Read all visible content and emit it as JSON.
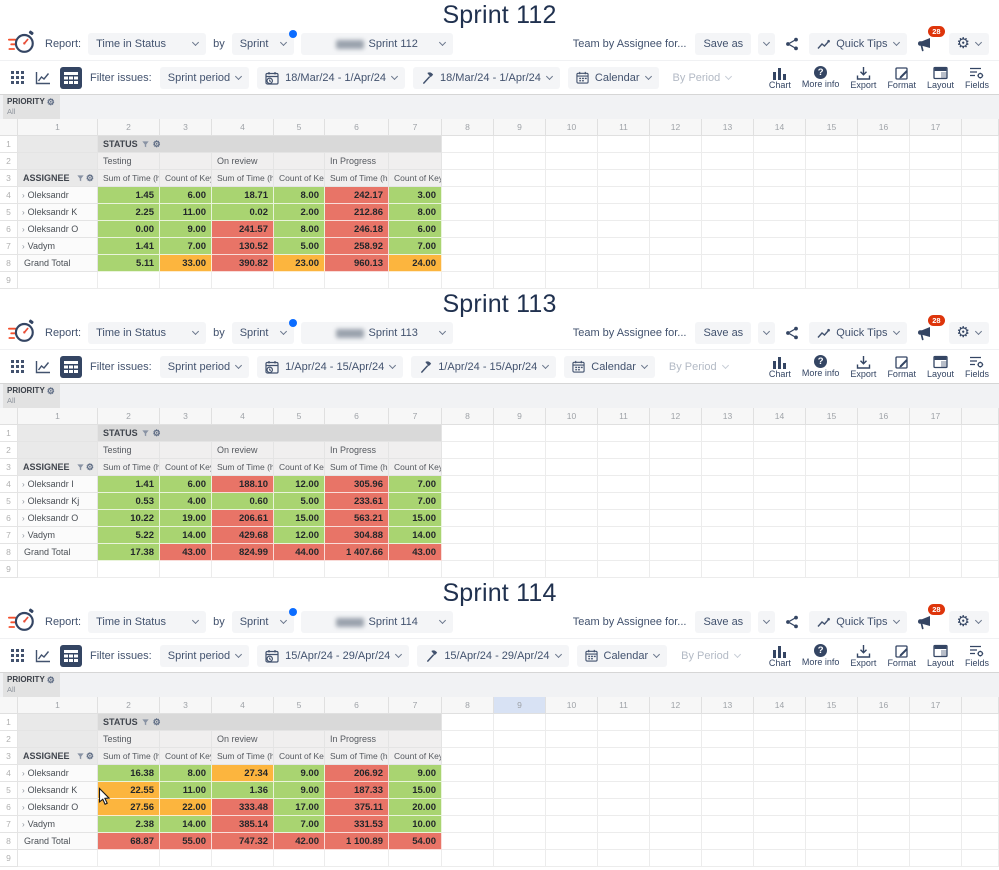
{
  "shared": {
    "report_label": "Report:",
    "report_value": "Time in Status",
    "by_label": "by",
    "group_by_value": "Sprint",
    "team_text": "Team by Assignee for...",
    "save_as_label": "Save as",
    "quick_tips_label": "Quick Tips",
    "notification_count": "28",
    "filter_issues_label": "Filter issues:",
    "sprint_period_value": "Sprint period",
    "calendar_value": "Calendar",
    "by_period_label": "By Period",
    "tools": [
      {
        "label": "Chart"
      },
      {
        "label": "More info"
      },
      {
        "label": "Export"
      },
      {
        "label": "Format"
      },
      {
        "label": "Layout"
      },
      {
        "label": "Fields"
      }
    ],
    "priority": {
      "label": "PRIORITY",
      "value": "All"
    },
    "status_label": "STATUS",
    "assignee_label": "ASSIGNEE",
    "status_groups": [
      "Testing",
      "On review",
      "In Progress"
    ],
    "measure_headers": [
      "Sum of Time (hours)",
      "Count of Key"
    ],
    "grand_total_label": "Grand Total",
    "column_numbers": [
      "1",
      "2",
      "3",
      "4",
      "5",
      "6",
      "7",
      "8",
      "9",
      "10",
      "11",
      "12",
      "13",
      "14",
      "15",
      "16",
      "17"
    ],
    "row_numbers": [
      "1",
      "2",
      "3",
      "4",
      "5",
      "6",
      "7",
      "8",
      "9"
    ],
    "colors": {
      "green": "#a9d471",
      "orange": "#fcb53e",
      "red": "#e87467",
      "accent_blue": "#0b6cff",
      "badge_red": "#de350b",
      "icon_navy": "#344563"
    }
  },
  "sections": [
    {
      "title": "Sprint 112",
      "sprint_value": "Sprint 112",
      "date_range_1": "18/Mar/24 - 1/Apr/24",
      "date_range_2": "18/Mar/24 - 1/Apr/24",
      "highlight_col": null,
      "cursor": false,
      "rows": [
        {
          "name": "Oleksandr",
          "cells": [
            [
              "1.45",
              "g"
            ],
            [
              "6.00",
              "g"
            ],
            [
              "18.71",
              "g"
            ],
            [
              "8.00",
              "g"
            ],
            [
              "242.17",
              "r"
            ],
            [
              "3.00",
              "g"
            ]
          ]
        },
        {
          "name": "Oleksandr K",
          "cells": [
            [
              "2.25",
              "g"
            ],
            [
              "11.00",
              "g"
            ],
            [
              "0.02",
              "g"
            ],
            [
              "2.00",
              "g"
            ],
            [
              "212.86",
              "r"
            ],
            [
              "8.00",
              "g"
            ]
          ]
        },
        {
          "name": "Oleksandr O",
          "cells": [
            [
              "0.00",
              "g"
            ],
            [
              "9.00",
              "g"
            ],
            [
              "241.57",
              "r"
            ],
            [
              "8.00",
              "g"
            ],
            [
              "246.18",
              "r"
            ],
            [
              "6.00",
              "g"
            ]
          ]
        },
        {
          "name": "Vadym",
          "cells": [
            [
              "1.41",
              "g"
            ],
            [
              "7.00",
              "g"
            ],
            [
              "130.52",
              "r"
            ],
            [
              "5.00",
              "g"
            ],
            [
              "258.92",
              "r"
            ],
            [
              "7.00",
              "g"
            ]
          ]
        }
      ],
      "grand_total": [
        [
          "5.11",
          "g"
        ],
        [
          "33.00",
          "o"
        ],
        [
          "390.82",
          "r"
        ],
        [
          "23.00",
          "o"
        ],
        [
          "960.13",
          "r"
        ],
        [
          "24.00",
          "o"
        ]
      ]
    },
    {
      "title": "Sprint 113",
      "sprint_value": "Sprint 113",
      "date_range_1": "1/Apr/24 - 15/Apr/24",
      "date_range_2": "1/Apr/24 - 15/Apr/24",
      "highlight_col": null,
      "cursor": false,
      "rows": [
        {
          "name": "Oleksandr I",
          "cells": [
            [
              "1.41",
              "g"
            ],
            [
              "6.00",
              "g"
            ],
            [
              "188.10",
              "r"
            ],
            [
              "12.00",
              "g"
            ],
            [
              "305.96",
              "r"
            ],
            [
              "7.00",
              "g"
            ]
          ]
        },
        {
          "name": "Oleksandr Kj",
          "cells": [
            [
              "0.53",
              "g"
            ],
            [
              "4.00",
              "g"
            ],
            [
              "0.60",
              "g"
            ],
            [
              "5.00",
              "g"
            ],
            [
              "233.61",
              "r"
            ],
            [
              "7.00",
              "g"
            ]
          ]
        },
        {
          "name": "Oleksandr O",
          "cells": [
            [
              "10.22",
              "g"
            ],
            [
              "19.00",
              "g"
            ],
            [
              "206.61",
              "r"
            ],
            [
              "15.00",
              "g"
            ],
            [
              "563.21",
              "r"
            ],
            [
              "15.00",
              "g"
            ]
          ]
        },
        {
          "name": "Vadym",
          "cells": [
            [
              "5.22",
              "g"
            ],
            [
              "14.00",
              "g"
            ],
            [
              "429.68",
              "r"
            ],
            [
              "12.00",
              "g"
            ],
            [
              "304.88",
              "r"
            ],
            [
              "14.00",
              "g"
            ]
          ]
        }
      ],
      "grand_total": [
        [
          "17.38",
          "g"
        ],
        [
          "43.00",
          "r"
        ],
        [
          "824.99",
          "r"
        ],
        [
          "44.00",
          "r"
        ],
        [
          "1 407.66",
          "r"
        ],
        [
          "43.00",
          "r"
        ]
      ]
    },
    {
      "title": "Sprint 114",
      "sprint_value": "Sprint 114",
      "date_range_1": "15/Apr/24 - 29/Apr/24",
      "date_range_2": "15/Apr/24 - 29/Apr/24",
      "highlight_col": "9",
      "cursor": true,
      "rows": [
        {
          "name": "Oleksandr",
          "cells": [
            [
              "16.38",
              "g"
            ],
            [
              "8.00",
              "g"
            ],
            [
              "27.34",
              "o"
            ],
            [
              "9.00",
              "g"
            ],
            [
              "206.92",
              "r"
            ],
            [
              "9.00",
              "g"
            ]
          ]
        },
        {
          "name": "Oleksandr K",
          "cells": [
            [
              "22.55",
              "o"
            ],
            [
              "11.00",
              "g"
            ],
            [
              "1.36",
              "g"
            ],
            [
              "9.00",
              "g"
            ],
            [
              "187.33",
              "r"
            ],
            [
              "15.00",
              "g"
            ]
          ]
        },
        {
          "name": "Oleksandr O",
          "cells": [
            [
              "27.56",
              "o"
            ],
            [
              "22.00",
              "o"
            ],
            [
              "333.48",
              "r"
            ],
            [
              "17.00",
              "g"
            ],
            [
              "375.11",
              "r"
            ],
            [
              "20.00",
              "g"
            ]
          ]
        },
        {
          "name": "Vadym",
          "cells": [
            [
              "2.38",
              "g"
            ],
            [
              "14.00",
              "g"
            ],
            [
              "385.14",
              "r"
            ],
            [
              "7.00",
              "g"
            ],
            [
              "331.53",
              "r"
            ],
            [
              "10.00",
              "g"
            ]
          ]
        }
      ],
      "grand_total": [
        [
          "68.87",
          "r"
        ],
        [
          "55.00",
          "r"
        ],
        [
          "747.32",
          "r"
        ],
        [
          "42.00",
          "r"
        ],
        [
          "1 100.89",
          "r"
        ],
        [
          "54.00",
          "r"
        ]
      ]
    }
  ]
}
